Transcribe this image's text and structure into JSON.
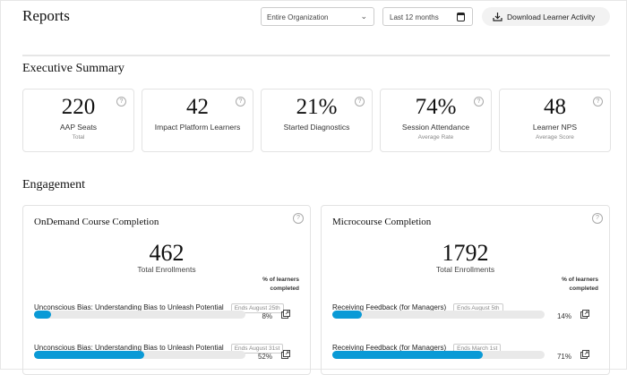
{
  "header": {
    "title": "Reports",
    "org_select": "Entire Organization",
    "date_range": "Last 12 months",
    "download_label": "Download Learner Activity"
  },
  "executive_summary": {
    "title": "Executive Summary",
    "cards": [
      {
        "value": "220",
        "label": "AAP Seats",
        "sub": "Total"
      },
      {
        "value": "42",
        "label": "Impact Platform Learners",
        "sub": ""
      },
      {
        "value": "21%",
        "label": "Started Diagnostics",
        "sub": ""
      },
      {
        "value": "74%",
        "label": "Session Attendance",
        "sub": "Average Rate"
      },
      {
        "value": "48",
        "label": "Learner NPS",
        "sub": "Average Score"
      }
    ]
  },
  "engagement": {
    "title": "Engagement",
    "panels": [
      {
        "title": "OnDemand Course Completion",
        "total": "462",
        "total_label": "Total Enrollments",
        "pct_label_1": "% of learners",
        "pct_label_2": "completed",
        "rows": [
          {
            "name": "Unconscious Bias: Understanding Bias to Unleash Potential",
            "badge": "Ends August 25th",
            "percent": 8,
            "percent_label": "8%"
          },
          {
            "name": "Unconscious Bias: Understanding Bias to Unleash Potential",
            "badge": "Ends August 31st",
            "percent": 52,
            "percent_label": "52%"
          }
        ]
      },
      {
        "title": "Microcourse Completion",
        "total": "1792",
        "total_label": "Total Enrollments",
        "pct_label_1": "% of learners",
        "pct_label_2": "completed",
        "rows": [
          {
            "name": "Receiving Feedback (for Managers)",
            "badge": "Ends August 5th",
            "percent": 14,
            "percent_label": "14%"
          },
          {
            "name": "Receiving Feedback (for Managers)",
            "badge": "Ends March 1st",
            "percent": 71,
            "percent_label": "71%"
          }
        ]
      }
    ]
  },
  "colors": {
    "accent": "#0a9ad6"
  },
  "icons": {
    "help": "question-circle-icon",
    "download": "download-icon",
    "calendar": "calendar-icon",
    "chevron": "chevron-down-icon",
    "export": "external-link-icon"
  }
}
